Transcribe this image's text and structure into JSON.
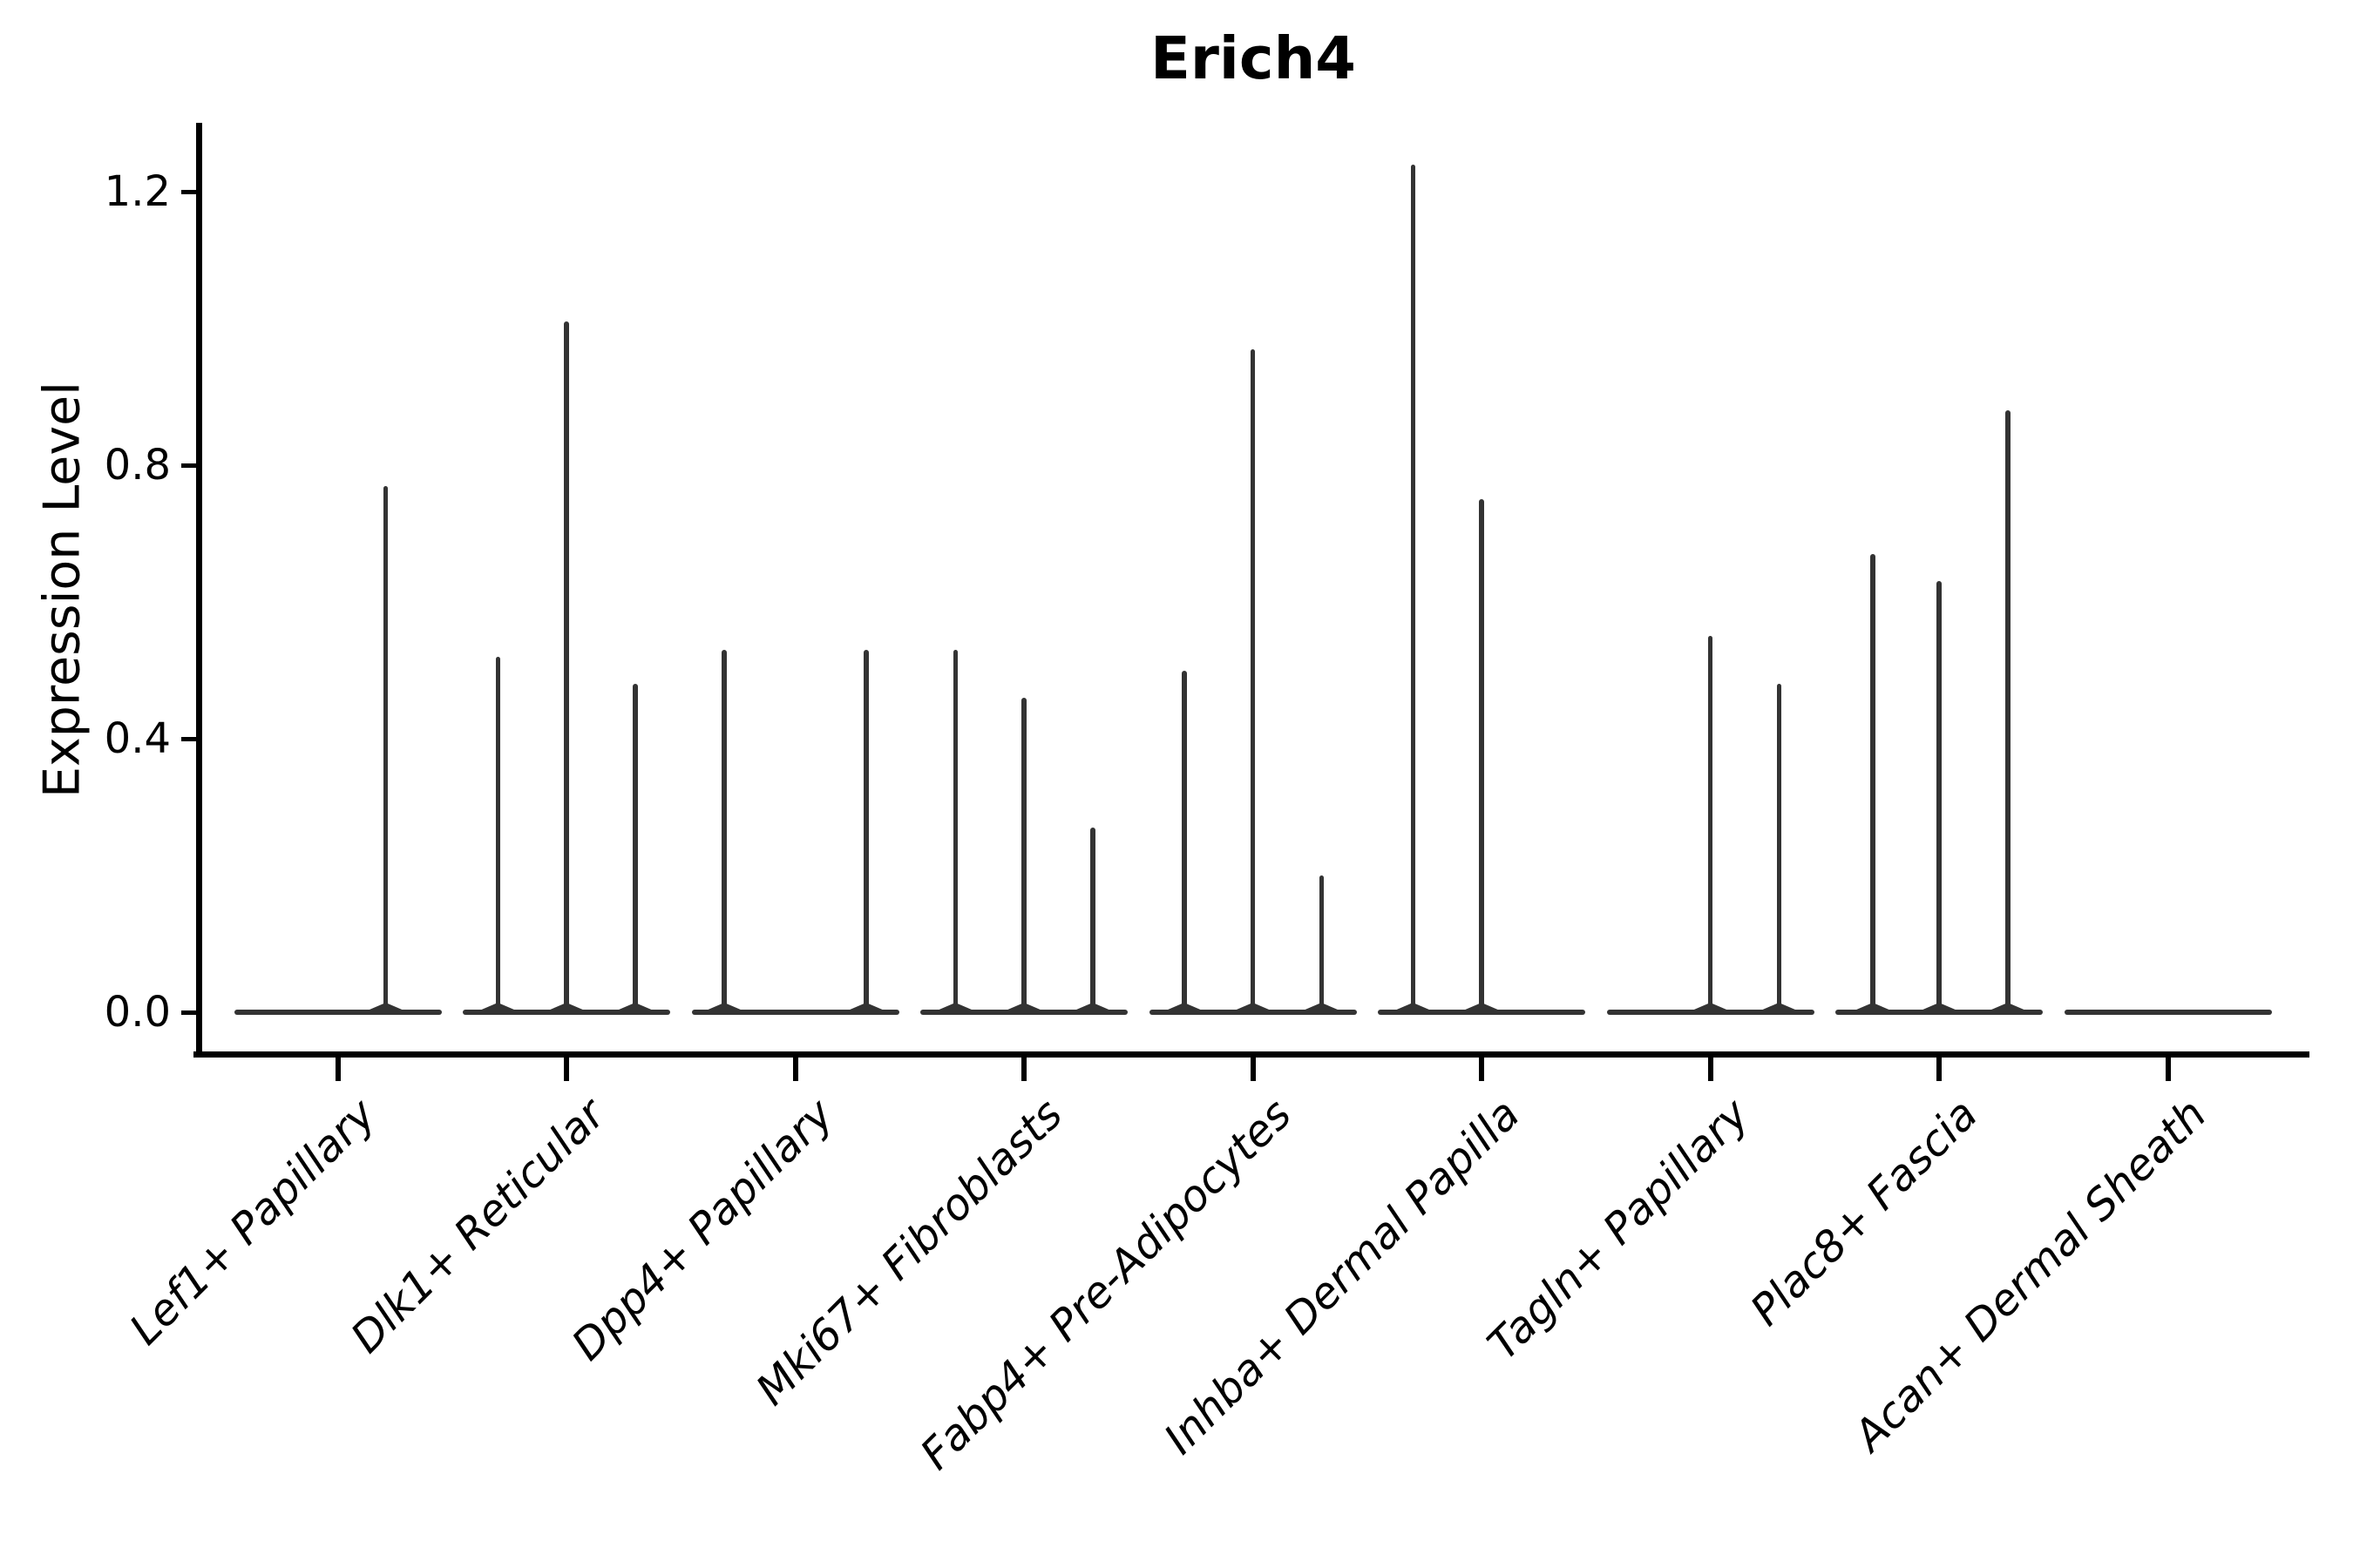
{
  "title": "Erich4",
  "y_axis": {
    "label": "Expression Level",
    "tick_labels": [
      "0.0",
      "0.4",
      "0.8",
      "1.2"
    ]
  },
  "colors": {
    "background": "#ffffff",
    "violin_line": "#333333",
    "axis": "#000000",
    "text": "#000000"
  },
  "chart_data": {
    "type": "violin",
    "title": "Erich4",
    "xlabel": "",
    "ylabel": "Expression Level",
    "yticks": [
      0.0,
      0.4,
      0.8,
      1.2
    ],
    "ylim": [
      -0.06,
      1.3
    ],
    "grid": false,
    "legend": null,
    "note": "Single-gene expression violin plot; each group shows a flat violin baseline at 0 with thin density spikes at offsets (in group-width units) reaching the listed expression values.",
    "violin_halfwidth": 0.453,
    "categories": [
      "Lef1+ Papillary",
      "Dlk1+ Reticular",
      "Dpp4+ Papillary",
      "Mki67+ Fibroblasts",
      "Fabp4+ Pre-Adipocytes",
      "Inhba+ Dermal Papilla",
      "Tagln+ Papillary",
      "Plac8+ Fascia",
      "Acan+ Dermal Sheath"
    ],
    "groups": [
      {
        "label": "Lef1+ Papillary",
        "spikes": [
          {
            "offset": 0.21,
            "value": 0.77
          }
        ]
      },
      {
        "label": "Dlk1+ Reticular",
        "spikes": [
          {
            "offset": -0.3,
            "value": 0.52
          },
          {
            "offset": 0.0,
            "value": 1.01
          },
          {
            "offset": 0.3,
            "value": 0.48
          }
        ]
      },
      {
        "label": "Dpp4+ Papillary",
        "spikes": [
          {
            "offset": -0.31,
            "value": 0.53
          },
          {
            "offset": 0.31,
            "value": 0.53
          }
        ]
      },
      {
        "label": "Mki67+ Fibroblasts",
        "spikes": [
          {
            "offset": -0.3,
            "value": 0.53
          },
          {
            "offset": 0.0,
            "value": 0.46
          },
          {
            "offset": 0.3,
            "value": 0.27
          }
        ]
      },
      {
        "label": "Fabp4+ Pre-Adipocytes",
        "spikes": [
          {
            "offset": -0.3,
            "value": 0.5
          },
          {
            "offset": 0.0,
            "value": 0.97
          },
          {
            "offset": 0.3,
            "value": 0.2
          }
        ]
      },
      {
        "label": "Inhba+ Dermal Papilla",
        "spikes": [
          {
            "offset": -0.3,
            "value": 1.24
          },
          {
            "offset": 0.0,
            "value": 0.75
          }
        ]
      },
      {
        "label": "Tagln+ Papillary",
        "spikes": [
          {
            "offset": 0.0,
            "value": 0.55
          },
          {
            "offset": 0.3,
            "value": 0.48
          }
        ]
      },
      {
        "label": "Plac8+ Fascia",
        "spikes": [
          {
            "offset": -0.29,
            "value": 0.67
          },
          {
            "offset": 0.0,
            "value": 0.63
          },
          {
            "offset": 0.3,
            "value": 0.88
          }
        ]
      },
      {
        "label": "Acan+ Dermal Sheath",
        "spikes": []
      }
    ]
  }
}
